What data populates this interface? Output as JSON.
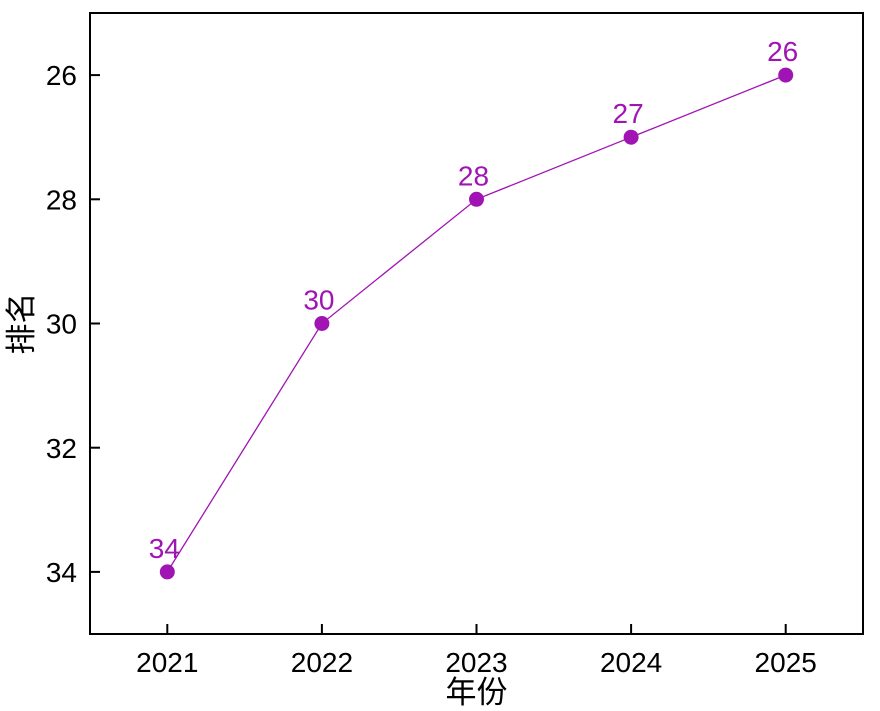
{
  "figure": {
    "background_color": "#ffffff"
  },
  "chart_data": {
    "type": "line",
    "title": "",
    "xlabel": "年份",
    "ylabel": "排名",
    "x": [
      2021,
      2022,
      2023,
      2024,
      2025
    ],
    "values": [
      34,
      30,
      28,
      27,
      26
    ],
    "point_labels": [
      "34",
      "30",
      "28",
      "27",
      "26"
    ],
    "xticks": [
      2021,
      2022,
      2023,
      2024,
      2025
    ],
    "xtick_labels": [
      "2021",
      "2022",
      "2023",
      "2024",
      "2025"
    ],
    "yticks": [
      26,
      28,
      30,
      32,
      34
    ],
    "ytick_labels": [
      "26",
      "28",
      "30",
      "32",
      "34"
    ],
    "xlim": [
      2020.5,
      2025.5
    ],
    "ylim": [
      35,
      25
    ],
    "y_axis_inverted": true,
    "grid": false,
    "legend": "none",
    "frame": "full-box",
    "line_color": "#A114B4",
    "marker_color": "#A114B4",
    "point_label_color": "#A114B4",
    "axis_color": "#000000",
    "tick_label_color": "#000000"
  }
}
